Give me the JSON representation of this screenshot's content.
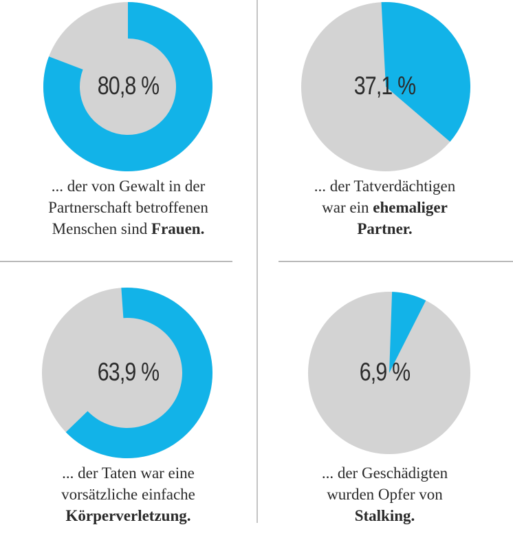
{
  "colors": {
    "accent": "#12b3e8",
    "track": "#d3d3d3",
    "rule": "#c0c0c0"
  },
  "chart_data": [
    {
      "type": "pie",
      "value": 80.8,
      "label": "80,8 %",
      "caption": [
        "... der von Gewalt in der",
        "Partnerschaft betroffenen",
        "Menschen sind "
      ],
      "caption_bold": "Frauen."
    },
    {
      "type": "pie",
      "value": 37.1,
      "label": "37,1 %",
      "caption": [
        "... der Tatverdächtigen",
        "war ein "
      ],
      "caption_bold": "ehemaliger",
      "caption_bold_2": "Partner."
    },
    {
      "type": "pie",
      "value": 63.9,
      "label": "63,9 %",
      "caption": [
        "... der Taten war eine",
        "vorsätzliche einfache"
      ],
      "caption_bold": "Körperverletzung."
    },
    {
      "type": "pie",
      "value": 6.9,
      "label": "6,9 %",
      "caption": [
        "... der Geschädigten",
        "wurden Opfer von"
      ],
      "caption_bold": "Stalking."
    }
  ]
}
